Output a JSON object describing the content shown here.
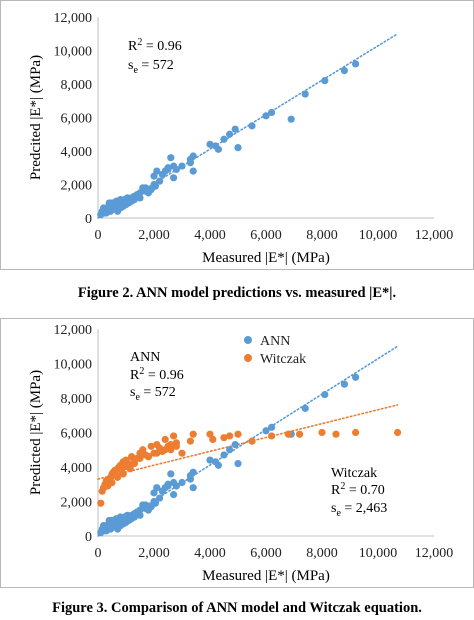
{
  "chart_data": [
    {
      "type": "scatter",
      "xlabel": "Measured |E*| (MPa)",
      "ylabel": "Predcited |E*| (MPa)",
      "xlim": [
        0,
        12000
      ],
      "ylim": [
        0,
        12000
      ],
      "xticks": [
        "0",
        "2,000",
        "4,000",
        "6,000",
        "8,000",
        "10,000",
        "12,000"
      ],
      "yticks": [
        "0",
        "2,000",
        "4,000",
        "6,000",
        "8,000",
        "10,000",
        "12,000"
      ],
      "grid": false,
      "legend": "none",
      "annotations": [
        {
          "label": "R",
          "sup": "2",
          "value": " = 0.96"
        },
        {
          "label": "s",
          "sub": "e",
          "value": " = 572"
        }
      ],
      "series": [
        {
          "color": "#5b9bd5",
          "x": [
            100,
            150,
            200,
            250,
            300,
            350,
            400,
            450,
            500,
            550,
            600,
            650,
            700,
            750,
            800,
            850,
            900,
            950,
            1000,
            1050,
            1100,
            1200,
            1300,
            1400,
            1500,
            1600,
            1700,
            1800,
            1900,
            2000,
            2050,
            2100,
            2200,
            2400,
            2500,
            2600,
            2700,
            2800,
            3000,
            3300,
            3400,
            4000,
            4200,
            4300,
            4500,
            4700,
            4900,
            5000,
            5500,
            6000,
            6200,
            6900,
            7400,
            8100,
            8800,
            9200,
            200,
            300,
            400,
            500,
            600,
            700,
            800,
            900,
            1100,
            1200,
            1300,
            1500,
            1700,
            2000,
            2300,
            2500,
            2700,
            3300,
            3400
          ],
          "y": [
            200,
            400,
            500,
            300,
            600,
            500,
            700,
            400,
            900,
            600,
            800,
            1000,
            700,
            900,
            1100,
            800,
            1000,
            1100,
            800,
            1200,
            1000,
            1000,
            1300,
            1400,
            1200,
            1800,
            1600,
            1500,
            1700,
            2000,
            1900,
            2800,
            2200,
            2800,
            2900,
            3600,
            2400,
            2900,
            3100,
            3500,
            3700,
            4400,
            4300,
            4100,
            4700,
            5000,
            5300,
            4200,
            5500,
            6100,
            6300,
            5900,
            7400,
            8200,
            8800,
            9200,
            600,
            300,
            900,
            500,
            700,
            400,
            600,
            700,
            900,
            1200,
            1100,
            1500,
            1800,
            2500,
            2600,
            3000,
            3100,
            3300,
            2800
          ],
          "trend": {
            "x": [
              0,
              10700
            ],
            "y": [
              0,
              11000
            ],
            "style": "dotted"
          }
        }
      ]
    },
    {
      "type": "scatter",
      "xlabel": "Measured |E*| (MPa)",
      "ylabel": "Predicted |E*| (MPa)",
      "xlim": [
        0,
        12000
      ],
      "ylim": [
        0,
        12000
      ],
      "xticks": [
        "0",
        "2,000",
        "4,000",
        "6,000",
        "8,000",
        "10,000",
        "12,000"
      ],
      "yticks": [
        "0",
        "2,000",
        "4,000",
        "6,000",
        "8,000",
        "10,000",
        "12,000"
      ],
      "grid": false,
      "legend": "top-center",
      "annotations_ann": [
        {
          "text": "ANN"
        },
        {
          "label": "R",
          "sup": "2",
          "value": " = 0.96"
        },
        {
          "label": "s",
          "sub": "e",
          "value": " = 572"
        }
      ],
      "annotations_witczak": [
        {
          "text": "Witczak"
        },
        {
          "label": "R",
          "sup": "2",
          "value": " = 0.70"
        },
        {
          "label": "s",
          "sub": "e",
          "value": " = 2,463"
        }
      ],
      "series": [
        {
          "name": "ANN",
          "color": "#5b9bd5",
          "x": [
            100,
            150,
            200,
            250,
            300,
            350,
            400,
            450,
            500,
            550,
            600,
            650,
            700,
            750,
            800,
            850,
            900,
            950,
            1000,
            1050,
            1100,
            1200,
            1300,
            1400,
            1500,
            1600,
            1700,
            1800,
            1900,
            2000,
            2050,
            2100,
            2200,
            2400,
            2500,
            2600,
            2700,
            2800,
            3000,
            3300,
            3400,
            4000,
            4200,
            4300,
            4500,
            4700,
            4900,
            5000,
            5500,
            6000,
            6200,
            6900,
            7400,
            8100,
            8800,
            9200,
            200,
            300,
            400,
            500,
            600,
            700,
            800,
            900,
            1100,
            1200,
            1300,
            1500,
            1700,
            2000,
            2300,
            2500,
            2700,
            3300,
            3400
          ],
          "y": [
            200,
            400,
            500,
            300,
            600,
            500,
            700,
            400,
            900,
            600,
            800,
            1000,
            700,
            900,
            1100,
            800,
            1000,
            1100,
            800,
            1200,
            1000,
            1000,
            1300,
            1400,
            1200,
            1800,
            1600,
            1500,
            1700,
            2000,
            1900,
            2800,
            2200,
            2800,
            2900,
            3600,
            2400,
            2900,
            3100,
            3500,
            3700,
            4400,
            4300,
            4100,
            4700,
            5000,
            5300,
            4200,
            5500,
            6100,
            6300,
            5900,
            7400,
            8200,
            8800,
            9200,
            600,
            300,
            900,
            500,
            700,
            400,
            600,
            700,
            900,
            1200,
            1100,
            1500,
            1800,
            2500,
            2600,
            3000,
            3100,
            3300,
            2800
          ],
          "trend": {
            "x": [
              0,
              10700
            ],
            "y": [
              0,
              11000
            ],
            "style": "dotted"
          }
        },
        {
          "name": "Witczak",
          "color": "#ed7d31",
          "x": [
            100,
            150,
            200,
            250,
            300,
            350,
            400,
            450,
            500,
            550,
            600,
            650,
            700,
            750,
            800,
            850,
            900,
            950,
            1000,
            1050,
            1100,
            1150,
            1200,
            1300,
            1400,
            1500,
            1600,
            1700,
            1800,
            1900,
            2000,
            2100,
            2200,
            2300,
            2400,
            2500,
            2600,
            2700,
            2800,
            3000,
            3300,
            3400,
            4000,
            4100,
            4500,
            4700,
            5000,
            5500,
            6200,
            6800,
            7200,
            8000,
            8500,
            9200,
            10700,
            300,
            500,
            700,
            900,
            1100,
            1300,
            1500,
            1800,
            2100,
            2400,
            2600,
            2800
          ],
          "y": [
            1900,
            2600,
            2800,
            3000,
            3200,
            2900,
            3300,
            3400,
            3600,
            3700,
            3800,
            3500,
            3900,
            4000,
            4100,
            3700,
            4300,
            4000,
            4400,
            4100,
            4200,
            3900,
            4600,
            4300,
            4500,
            4800,
            5000,
            4700,
            4600,
            5200,
            4800,
            5300,
            5100,
            4900,
            5600,
            5200,
            5000,
            5800,
            5400,
            4800,
            5500,
            5900,
            5900,
            5600,
            5700,
            5800,
            5900,
            5500,
            5800,
            5900,
            5900,
            6000,
            5900,
            6000,
            6000,
            2900,
            3100,
            3400,
            3600,
            4000,
            4200,
            4500,
            4600,
            4800,
            5000,
            5300,
            5200
          ],
          "trend": {
            "x": [
              0,
              10700
            ],
            "y": [
              3300,
              7600
            ],
            "style": "dotted"
          }
        }
      ]
    }
  ],
  "captions": {
    "fig2": "Figure 2. ANN model predictions vs. measured |E*|.",
    "fig3": "Figure 3. Comparison of ANN model and Witczak equation."
  }
}
